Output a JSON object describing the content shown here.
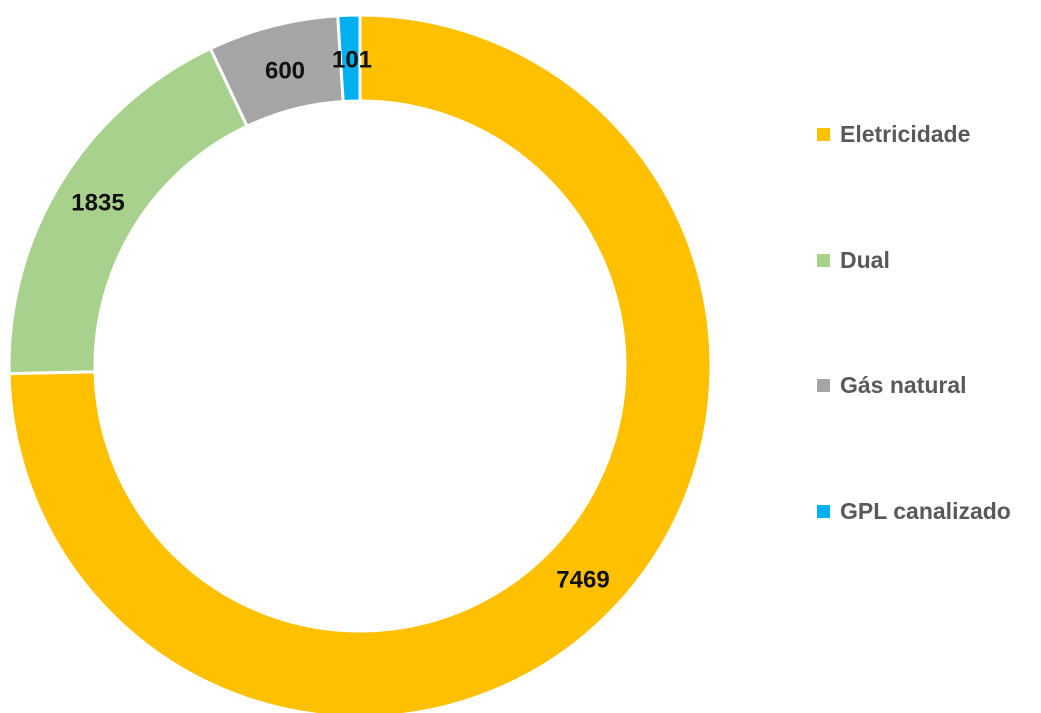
{
  "chart_data": {
    "type": "pie",
    "variant": "donut",
    "title": "",
    "series": [
      {
        "values": [
          7469,
          1835,
          600,
          101
        ],
        "labels": [
          "Eletricidade",
          "Dual",
          "Gás natural",
          "GPL canalizado"
        ],
        "colors": [
          "#FFC000",
          "#A9D18E",
          "#A5A5A5",
          "#00B0F0"
        ]
      }
    ],
    "categories": [
      "Eletricidade",
      "Dual",
      "Gás natural",
      "GPL canalizado"
    ],
    "data_labels": [
      "7469",
      "1835",
      "600",
      "101"
    ],
    "start_angle_deg": 0,
    "direction": "clockwise",
    "legend": {
      "placement": "right",
      "entries": [
        "Eletricidade",
        "Dual",
        "Gás natural",
        "GPL canalizado"
      ]
    }
  }
}
